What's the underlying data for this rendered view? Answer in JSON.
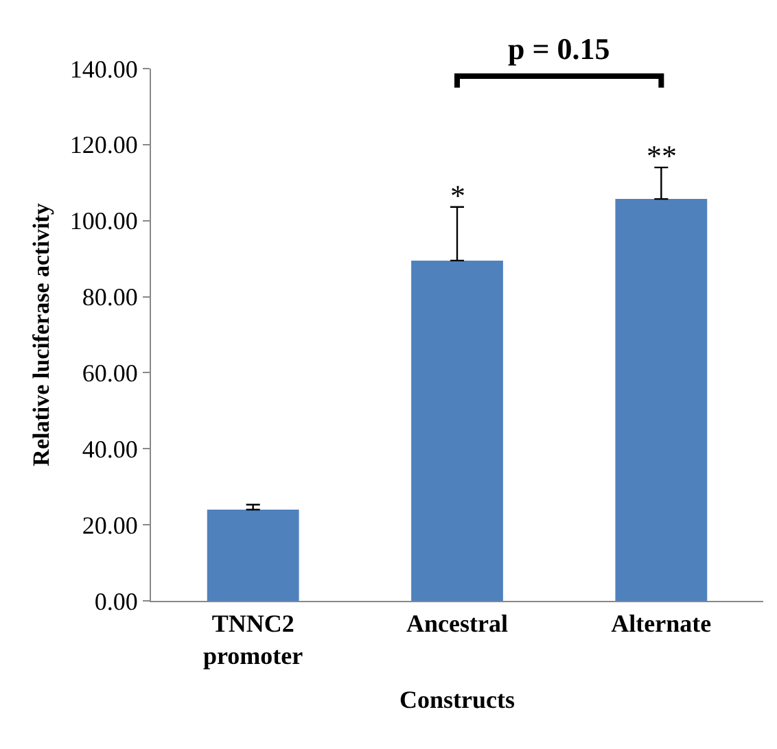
{
  "chart_data": {
    "type": "bar",
    "xlabel": "Constructs",
    "ylabel": "Relative luciferase activity",
    "categories": [
      "TNNC2 promoter",
      "Ancestral",
      "Alternate"
    ],
    "values": [
      24,
      89.5,
      105.7
    ],
    "color": "#4f81bd",
    "errors": [
      [
        24,
        25.3
      ],
      [
        89.5,
        103.6
      ],
      [
        105.7,
        114
      ]
    ],
    "ylim": [
      0,
      140
    ],
    "yticks": [
      {
        "value": 0,
        "label": "0.00"
      },
      {
        "value": 20,
        "label": "20.00"
      },
      {
        "value": 40,
        "label": "40.00"
      },
      {
        "value": 60,
        "label": "60.00"
      },
      {
        "value": 80,
        "label": "80.00"
      },
      {
        "value": 100,
        "label": "100.00"
      },
      {
        "value": 120,
        "label": "120.00"
      },
      {
        "value": 140,
        "label": "140.00"
      }
    ],
    "grid": false,
    "annotations": [
      {
        "text": "*",
        "x": "Ancestral",
        "y": 103.6
      },
      {
        "text": "**",
        "x": "Alternate",
        "y": 114
      },
      "p = 0.15"
    ]
  }
}
